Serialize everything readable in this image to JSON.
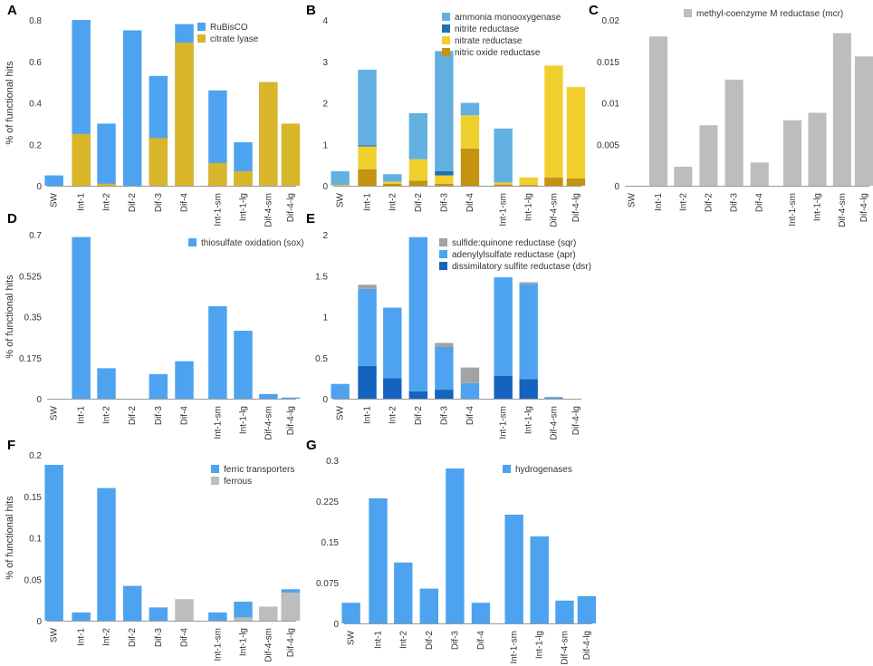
{
  "chart_data": [
    {
      "type": "bar",
      "panel": "A",
      "ylabel": "% of functional hits",
      "ylim": [
        0,
        0.8
      ],
      "yticks": [
        "0",
        "0.2",
        "0.4",
        "0.6",
        "0.8"
      ],
      "yticks_values": [
        0,
        0.2,
        0.4,
        0.6,
        0.8
      ],
      "categories": [
        "SW",
        "Int-1",
        "Int-2",
        "Dif-2",
        "Dif-3",
        "Dif-4",
        "Int-1-sm",
        "Int-1-lg",
        "Dif-4-sm",
        "Dif-4-lg"
      ],
      "stacked": false,
      "overlap": true,
      "series": [
        {
          "name": "RuBisCO",
          "color": "#4da3ef",
          "values": [
            0.05,
            0.8,
            0.3,
            0.75,
            0.53,
            0.78,
            0.46,
            0.21,
            0.5,
            0.0
          ]
        },
        {
          "name": "citrate lyase",
          "color": "#d9b52a",
          "values": [
            0.0,
            0.25,
            0.01,
            0.0,
            0.23,
            0.69,
            0.11,
            0.07,
            0.5,
            0.3
          ]
        }
      ]
    },
    {
      "type": "bar",
      "panel": "B",
      "ylabel": "",
      "ylim": [
        0,
        4
      ],
      "yticks": [
        "0",
        "1",
        "2",
        "3",
        "4"
      ],
      "yticks_values": [
        0,
        1,
        2,
        3,
        4
      ],
      "categories": [
        "SW",
        "Int-1",
        "Int-2",
        "Dif-2",
        "Dif-3",
        "Dif-4",
        "Int-1-sm",
        "Int-1-lg",
        "Dif-4-sm",
        "Dif-4-lg"
      ],
      "stacked": true,
      "series": [
        {
          "name": "nitric oxide reductase",
          "color": "#c4930f",
          "values": [
            0.0,
            0.4,
            0.05,
            0.12,
            0.05,
            0.9,
            0.03,
            0.02,
            0.2,
            0.18
          ]
        },
        {
          "name": "nitrate reductase",
          "color": "#f0d02e",
          "values": [
            0.02,
            0.55,
            0.05,
            0.52,
            0.2,
            0.8,
            0.05,
            0.18,
            2.7,
            2.2
          ]
        },
        {
          "name": "nitrite reductase",
          "color": "#1f6fb5",
          "values": [
            0.0,
            0.03,
            0.0,
            0.0,
            0.1,
            0.0,
            0.0,
            0.0,
            0.0,
            0.0
          ]
        },
        {
          "name": "ammonia monooxygenase",
          "color": "#62b0e0",
          "values": [
            0.33,
            1.82,
            0.18,
            1.11,
            2.9,
            0.3,
            1.3,
            0.0,
            0.0,
            0.0
          ]
        }
      ],
      "legend_order": [
        "ammonia monooxygenase",
        "nitrite reductase",
        "nitrate reductase",
        "nitric oxide reductase"
      ]
    },
    {
      "type": "bar",
      "panel": "C",
      "ylabel": "",
      "ylim": [
        0,
        0.02
      ],
      "yticks": [
        "0",
        "0.005",
        "0.01",
        "0.015",
        "0.02"
      ],
      "yticks_values": [
        0,
        0.005,
        0.01,
        0.015,
        0.02
      ],
      "categories": [
        "SW",
        "Int-1",
        "Int-2",
        "Dif-2",
        "Dif-3",
        "Dif-4",
        "Int-1-sm",
        "Int-1-lg",
        "Dif-4-sm",
        "Dif-4-lg"
      ],
      "stacked": false,
      "series": [
        {
          "name": "methyl-coenzyme M reductase (mcr)",
          "color": "#bdbdbd",
          "values": [
            0.0,
            0.018,
            0.0023,
            0.0073,
            0.0128,
            0.0028,
            0.0079,
            0.0088,
            0.0184,
            0.0156
          ]
        }
      ]
    },
    {
      "type": "bar",
      "panel": "D",
      "ylabel": "% of functional hits",
      "ylim": [
        0,
        0.7
      ],
      "yticks": [
        "0",
        "0.175",
        "0.35",
        "0.525",
        "0.7"
      ],
      "yticks_values": [
        0,
        0.175,
        0.35,
        0.525,
        0.7
      ],
      "categories": [
        "SW",
        "Int-1",
        "Int-2",
        "Dif-2",
        "Dif-3",
        "Dif-4",
        "Int-1-sm",
        "Int-1-lg",
        "Dif-4-sm",
        "Dif-4-lg"
      ],
      "stacked": false,
      "series": [
        {
          "name": "thiosulfate oxidation (sox)",
          "color": "#4da3ef",
          "values": [
            0.0,
            0.69,
            0.13,
            0.0,
            0.105,
            0.16,
            0.395,
            0.29,
            0.02,
            0.005
          ]
        }
      ]
    },
    {
      "type": "bar",
      "panel": "E",
      "ylabel": "",
      "ylim": [
        0,
        2
      ],
      "yticks": [
        "0",
        "0.5",
        "1",
        "1.5",
        "2"
      ],
      "yticks_values": [
        0,
        0.5,
        1,
        1.5,
        2
      ],
      "categories": [
        "SW",
        "Int-1",
        "Int-2",
        "Dif-2",
        "Dif-3",
        "Dif-4",
        "Int-1-sm",
        "Int-1-lg",
        "Dif-4-sm",
        "Dif-4-lg"
      ],
      "stacked": true,
      "series": [
        {
          "name": "dissimilatory sulfite reductase (dsr)",
          "color": "#1463bf",
          "values": [
            0.0,
            0.4,
            0.25,
            0.09,
            0.11,
            0.0,
            0.28,
            0.24,
            0.0,
            0.0
          ]
        },
        {
          "name": "adenylylsulfate reductase (apr)",
          "color": "#4da3ef",
          "values": [
            0.18,
            0.94,
            0.86,
            1.88,
            0.52,
            0.19,
            1.2,
            1.16,
            0.02,
            0.0
          ]
        },
        {
          "name": "sulfide:quinone reductase (sqr)",
          "color": "#a3a3a3",
          "values": [
            0.0,
            0.05,
            0.0,
            0.0,
            0.05,
            0.19,
            0.0,
            0.02,
            0.0,
            0.0
          ]
        }
      ],
      "legend_order": [
        "sulfide:quinone reductase (sqr)",
        "adenylylsulfate reductase (apr)",
        "dissimilatory sulfite reductase (dsr)"
      ]
    },
    {
      "type": "bar",
      "panel": "F",
      "ylabel": "% of functional hits",
      "ylim": [
        0,
        0.2
      ],
      "yticks": [
        "0",
        "0.05",
        "0.1",
        "0.15",
        "0.2"
      ],
      "yticks_values": [
        0,
        0.05,
        0.1,
        0.15,
        0.2
      ],
      "categories": [
        "SW",
        "Int-1",
        "Int-2",
        "Dif-2",
        "Dif-3",
        "Dif-4",
        "Int-1-sm",
        "Int-1-lg",
        "Dif-4-sm",
        "Dif-4-lg"
      ],
      "stacked": false,
      "overlap": true,
      "series": [
        {
          "name": "ferric transporters",
          "color": "#4da3ef",
          "values": [
            0.188,
            0.01,
            0.16,
            0.042,
            0.016,
            0.0,
            0.01,
            0.023,
            0.0,
            0.038
          ]
        },
        {
          "name": "ferrous",
          "color": "#bdbdbd",
          "values": [
            0.0,
            0.0,
            0.0,
            0.0,
            0.0,
            0.026,
            0.0,
            0.004,
            0.017,
            0.034
          ]
        }
      ]
    },
    {
      "type": "bar",
      "panel": "G",
      "ylabel": "",
      "ylim": [
        0,
        0.3
      ],
      "yticks": [
        "0",
        "0.075",
        "0.15",
        "0.225",
        "0.3"
      ],
      "yticks_values": [
        0,
        0.075,
        0.15,
        0.225,
        0.3
      ],
      "categories": [
        "SW",
        "Int-1",
        "Int-2",
        "Dif-2",
        "Dif-3",
        "Dif-4",
        "Int-1-sm",
        "Int-1-lg",
        "Dif-4-sm",
        "Dif-4-lg"
      ],
      "stacked": false,
      "series": [
        {
          "name": "hydrogenases",
          "color": "#4da3ef",
          "values": [
            0.038,
            0.23,
            0.112,
            0.064,
            0.285,
            0.038,
            0.2,
            0.16,
            0.042,
            0.05
          ]
        }
      ]
    }
  ]
}
